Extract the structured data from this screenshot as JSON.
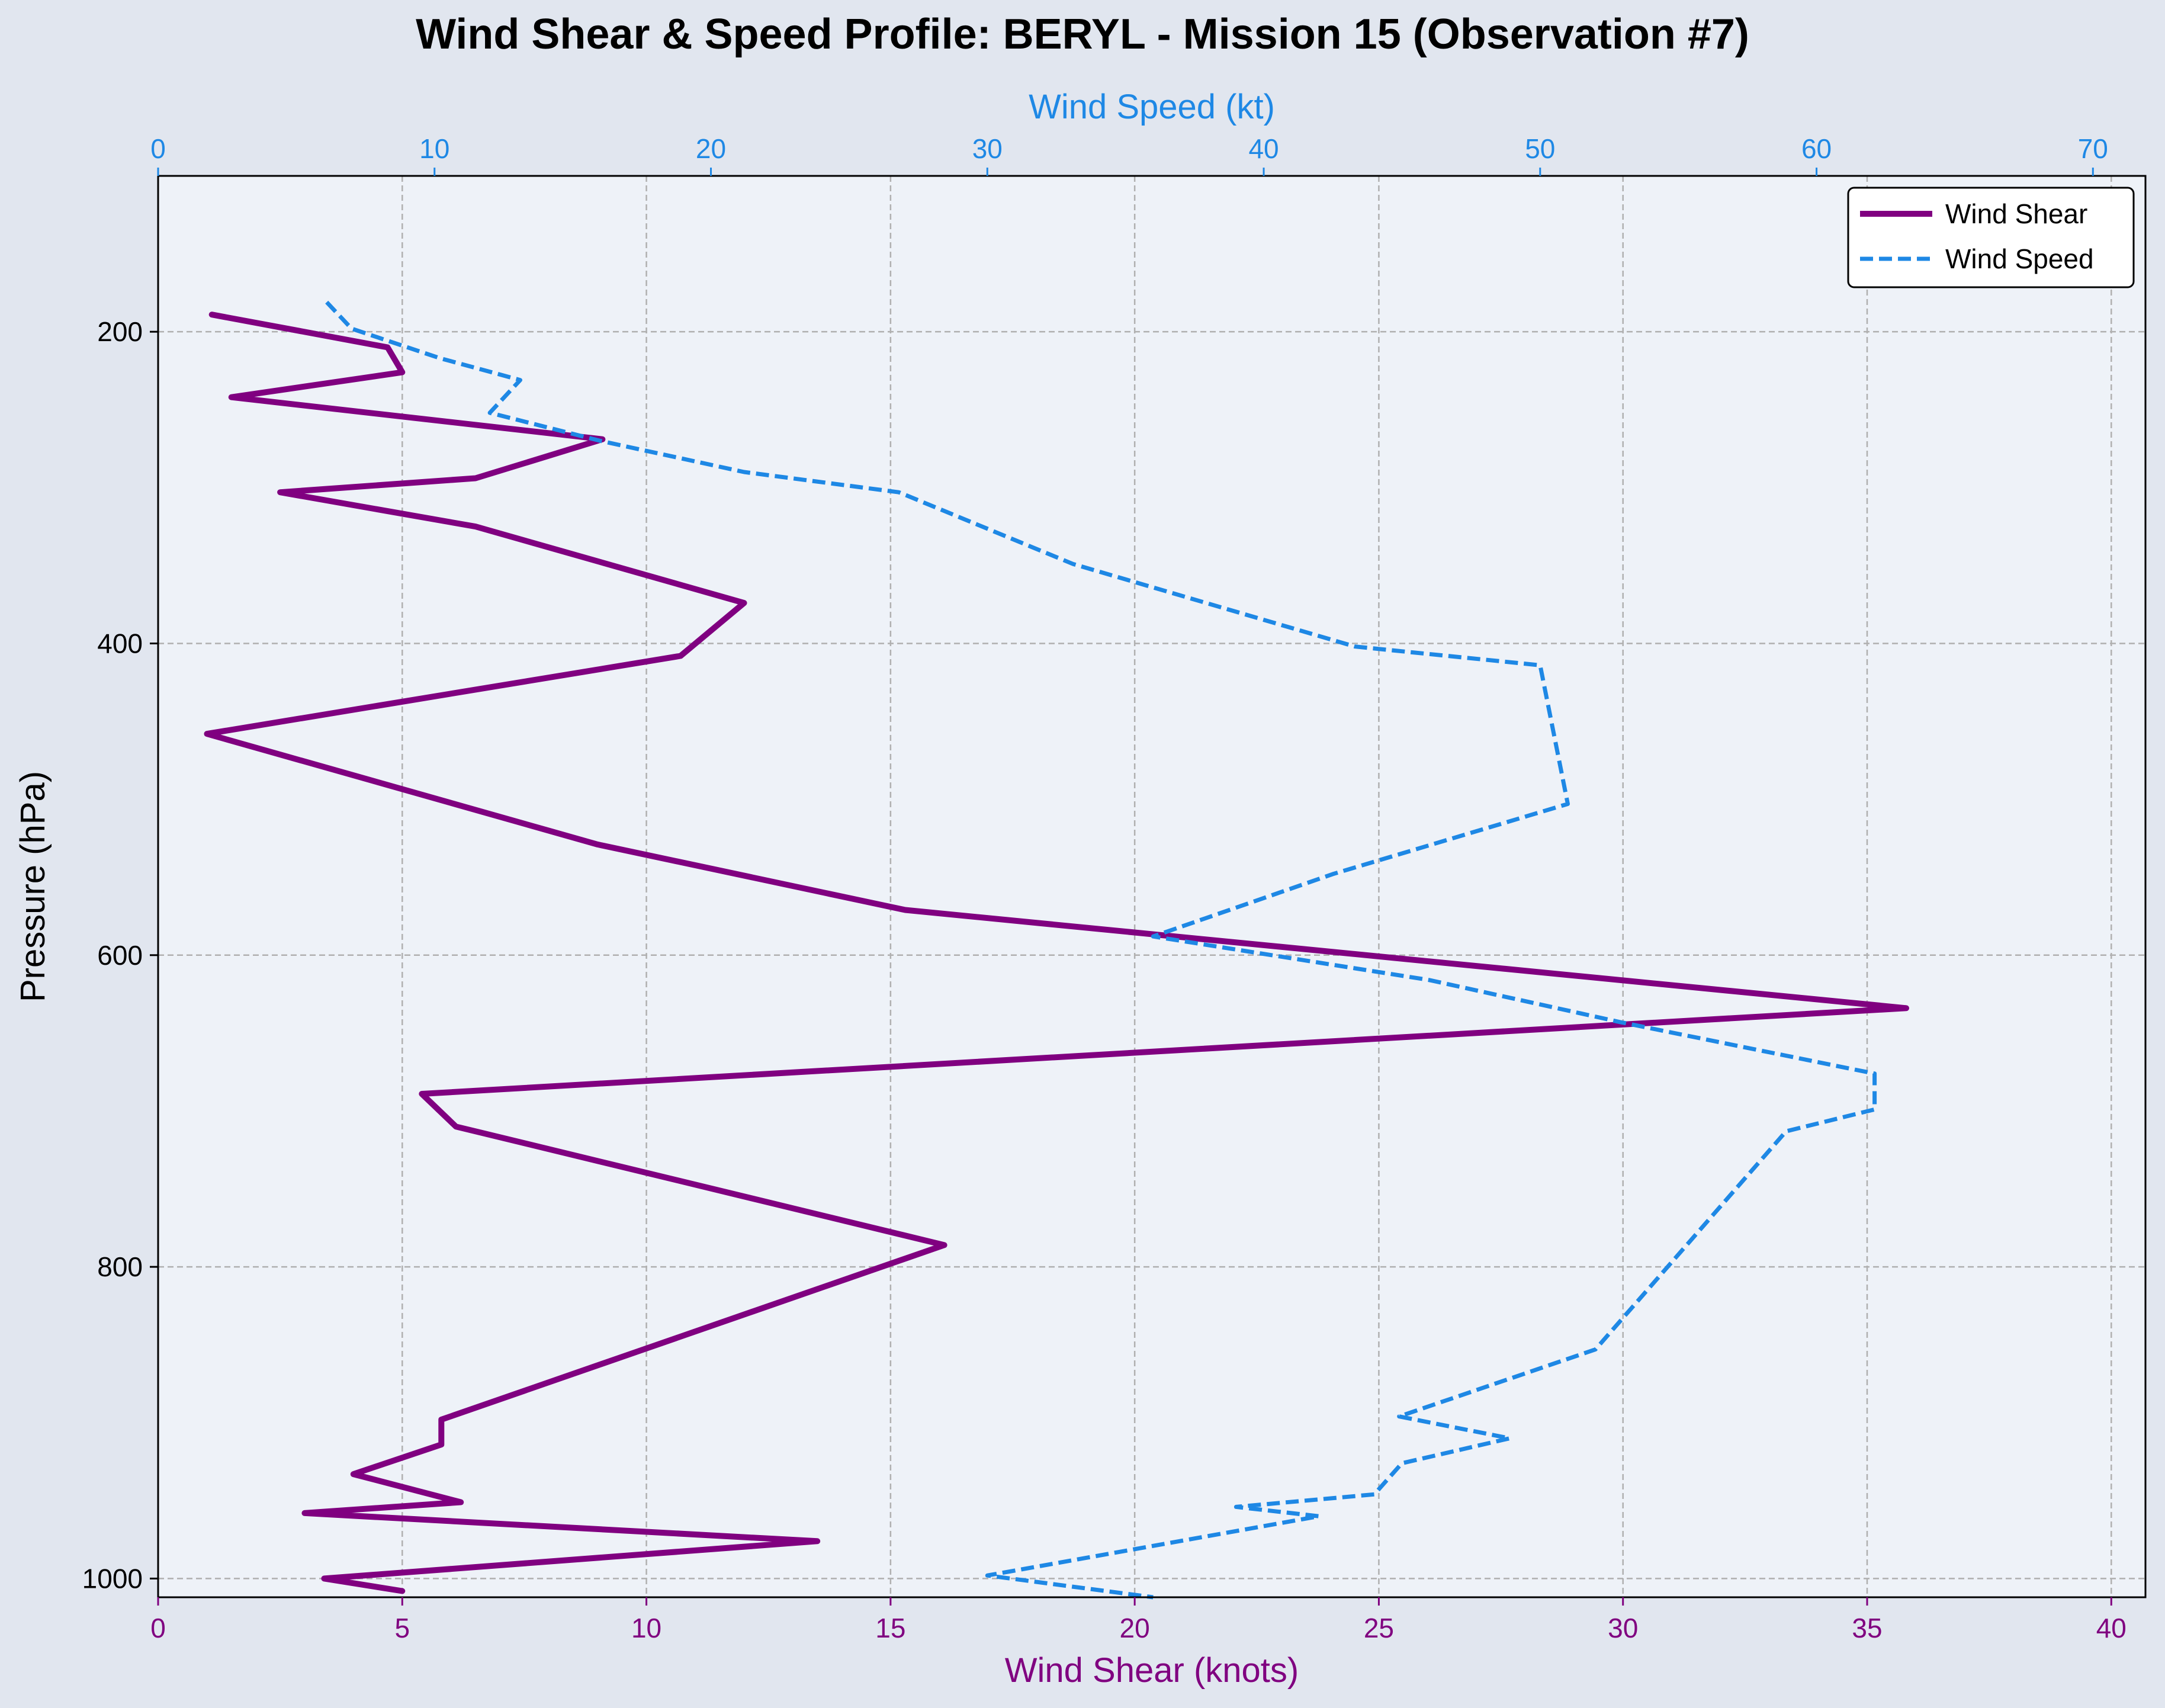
{
  "chart_data": {
    "type": "line",
    "title": "Wind Shear & Speed Profile: BERYL - Mission 15 (Observation #7)",
    "ylabel": "Pressure (hPa)",
    "xlabel_bottom": "Wind Shear (knots)",
    "xlabel_top": "Wind Speed (kt)",
    "y_inverted": true,
    "ylim": [
      1012,
      100
    ],
    "yticks": [
      200,
      400,
      600,
      800,
      1000
    ],
    "xlim_bottom": [
      0,
      40.7
    ],
    "xticks_bottom": [
      0,
      5,
      10,
      15,
      20,
      25,
      30,
      35,
      40
    ],
    "xlim_top": [
      0,
      71.9
    ],
    "xticks_top": [
      0,
      10,
      20,
      30,
      40,
      50,
      60,
      70
    ],
    "grid": true,
    "legend_position": "top-right",
    "colors": {
      "shear": "#800080",
      "speed": "#1e88e5"
    },
    "series": [
      {
        "name": "Wind Shear",
        "axis": "bottom",
        "style": "solid",
        "points": [
          [
            1.1,
            189
          ],
          [
            4.7,
            210
          ],
          [
            5.0,
            226
          ],
          [
            1.5,
            242
          ],
          [
            9.1,
            269
          ],
          [
            6.5,
            294
          ],
          [
            2.5,
            303
          ],
          [
            6.5,
            325
          ],
          [
            12.0,
            374
          ],
          [
            10.7,
            408
          ],
          [
            1.0,
            458
          ],
          [
            9.0,
            529
          ],
          [
            15.3,
            571
          ],
          [
            35.8,
            634
          ],
          [
            5.4,
            689
          ],
          [
            6.1,
            710
          ],
          [
            16.1,
            786
          ],
          [
            5.8,
            898
          ],
          [
            5.8,
            914
          ],
          [
            4.0,
            933
          ],
          [
            6.2,
            951
          ],
          [
            3.0,
            958
          ],
          [
            13.5,
            976
          ],
          [
            3.4,
            1000
          ],
          [
            5.0,
            1008
          ]
        ]
      },
      {
        "name": "Wind Speed",
        "axis": "top",
        "style": "dashed",
        "points": [
          [
            6.1,
            181
          ],
          [
            7.0,
            198
          ],
          [
            10.2,
            217
          ],
          [
            13.1,
            231
          ],
          [
            12.0,
            252
          ],
          [
            16.0,
            270
          ],
          [
            21.2,
            290
          ],
          [
            26.8,
            303
          ],
          [
            33.1,
            349
          ],
          [
            43.3,
            402
          ],
          [
            50.0,
            414
          ],
          [
            51.0,
            503
          ],
          [
            42.5,
            548
          ],
          [
            36.0,
            588
          ],
          [
            46.0,
            616
          ],
          [
            52.9,
            643
          ],
          [
            62.1,
            676
          ],
          [
            62.1,
            699
          ],
          [
            58.9,
            713
          ],
          [
            52.0,
            853
          ],
          [
            44.9,
            896
          ],
          [
            48.9,
            910
          ],
          [
            45.0,
            926
          ],
          [
            44.0,
            946
          ],
          [
            39.0,
            954
          ],
          [
            42.0,
            960
          ],
          [
            30.0,
            998
          ],
          [
            36.0,
            1012
          ]
        ]
      }
    ]
  }
}
